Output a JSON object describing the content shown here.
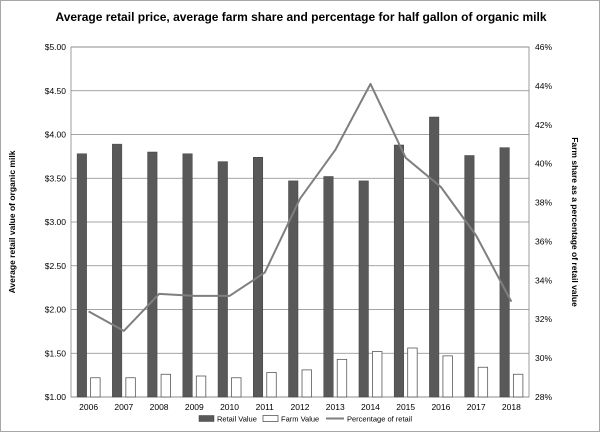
{
  "chart_data": {
    "type": "bar",
    "title": "Average retail price, average farm share and percentage for half gallon of organic milk",
    "categories": [
      "2006",
      "2007",
      "2008",
      "2009",
      "2010",
      "2011",
      "2012",
      "2013",
      "2014",
      "2015",
      "2016",
      "2017",
      "2018"
    ],
    "series": [
      {
        "name": "Retail Value",
        "type": "bar",
        "axis": "left",
        "color": "#595959",
        "values": [
          3.78,
          3.89,
          3.8,
          3.78,
          3.69,
          3.74,
          3.47,
          3.52,
          3.47,
          3.88,
          4.2,
          3.76,
          3.85
        ]
      },
      {
        "name": "Farm Value",
        "type": "bar",
        "axis": "left",
        "color": "#ffffff",
        "values": [
          1.22,
          1.22,
          1.26,
          1.24,
          1.22,
          1.28,
          1.31,
          1.43,
          1.52,
          1.56,
          1.47,
          1.34,
          1.26
        ]
      },
      {
        "name": "Percentage of retail",
        "type": "line",
        "axis": "right",
        "color": "#7f7f7f",
        "values": [
          32.4,
          31.4,
          33.3,
          33.2,
          33.2,
          34.4,
          38.2,
          40.7,
          44.1,
          40.3,
          38.8,
          36.3,
          32.9
        ]
      }
    ],
    "ylabel": "Average retail value of organic milk",
    "ylim": [
      1.0,
      5.0
    ],
    "yticks": [
      "$1.00",
      "$1.50",
      "$2.00",
      "$2.50",
      "$3.00",
      "$3.50",
      "$4.00",
      "$4.50",
      "$5.00"
    ],
    "y2label": "Farm share as a percentage of retail value",
    "y2lim": [
      28,
      46
    ],
    "y2ticks": [
      "28%",
      "30%",
      "32%",
      "34%",
      "36%",
      "38%",
      "40%",
      "42%",
      "44%",
      "46%"
    ],
    "xlabel": "",
    "grid": true,
    "legend_position": "bottom"
  }
}
